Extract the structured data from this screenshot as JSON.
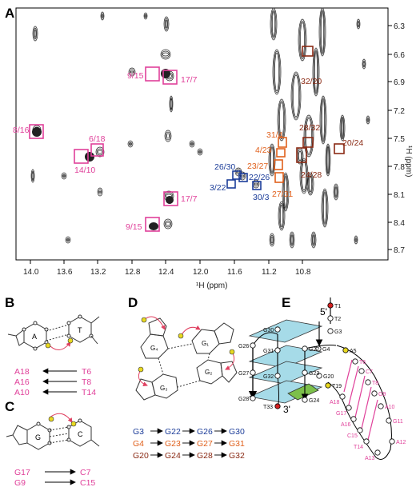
{
  "panels": {
    "A": "A",
    "B": "B",
    "C": "C",
    "D": "D",
    "E": "E"
  },
  "nmr": {
    "x_ticks": [
      "14.0",
      "13.6",
      "13.2",
      "12.8",
      "12.4",
      "12.0",
      "11.6",
      "11.2",
      "10.8"
    ],
    "y_ticks": [
      "6.3",
      "6.6",
      "6.9",
      "7.2",
      "7.5",
      "7.8",
      "8.1",
      "8.4",
      "8.7"
    ],
    "x_label": "¹H (ppm)",
    "y_label": "¹H (ppm)",
    "labels": [
      {
        "text": "9/15",
        "color": "#e0409a"
      },
      {
        "text": "17/7",
        "color": "#e0409a"
      },
      {
        "text": "8/16",
        "color": "#e0409a"
      },
      {
        "text": "6/18",
        "color": "#e0409a"
      },
      {
        "text": "14/10",
        "color": "#e0409a"
      },
      {
        "text": "17/7",
        "color": "#e0409a"
      },
      {
        "text": "9/15",
        "color": "#e0409a"
      },
      {
        "text": "26/30",
        "color": "#1c3d99"
      },
      {
        "text": "22/26",
        "color": "#1c3d99"
      },
      {
        "text": "3/22",
        "color": "#1c3d99"
      },
      {
        "text": "30/3",
        "color": "#1c3d99"
      },
      {
        "text": "31/4",
        "color": "#e0601c"
      },
      {
        "text": "4/23",
        "color": "#e0601c"
      },
      {
        "text": "23/27",
        "color": "#e0601c"
      },
      {
        "text": "27/31",
        "color": "#e0601c"
      },
      {
        "text": "32/20",
        "color": "#8a2a14"
      },
      {
        "text": "28/32",
        "color": "#8a2a14"
      },
      {
        "text": "20/24",
        "color": "#8a2a14"
      },
      {
        "text": "24/28",
        "color": "#8a2a14"
      }
    ]
  },
  "panelB": {
    "base_left": "A",
    "base_right": "T",
    "pairs": [
      {
        "left": "A18",
        "right": "T6"
      },
      {
        "left": "A16",
        "right": "T8"
      },
      {
        "left": "A10",
        "right": "T14"
      }
    ]
  },
  "panelC": {
    "base_left": "G",
    "base_right": "C",
    "pairs": [
      {
        "left": "G17",
        "right": "C7"
      },
      {
        "left": "G9",
        "right": "C15"
      }
    ]
  },
  "panelD": {
    "quartet_labels": [
      "G₄",
      "G₁",
      "G₃",
      "G₂"
    ],
    "rows": [
      {
        "items": [
          "G3",
          "G22",
          "G26",
          "G30"
        ],
        "color": "#1c3d99"
      },
      {
        "items": [
          "G4",
          "G23",
          "G27",
          "G31"
        ],
        "color": "#e0601c"
      },
      {
        "items": [
          "G20",
          "G24",
          "G28",
          "G32"
        ],
        "color": "#8a2a14"
      }
    ]
  },
  "panelE": {
    "five_prime": "5'",
    "three_prime": "3'",
    "nodes": [
      "T1",
      "T2",
      "G3",
      "G4",
      "A5",
      "T6",
      "C7",
      "T8",
      "G9",
      "A10",
      "G11",
      "A12",
      "A13",
      "T14",
      "C15",
      "A16",
      "G17",
      "A18",
      "T19",
      "G20",
      "G22",
      "G23",
      "G24",
      "G26",
      "G27",
      "G28",
      "G30",
      "G31",
      "G32",
      "T33"
    ]
  }
}
